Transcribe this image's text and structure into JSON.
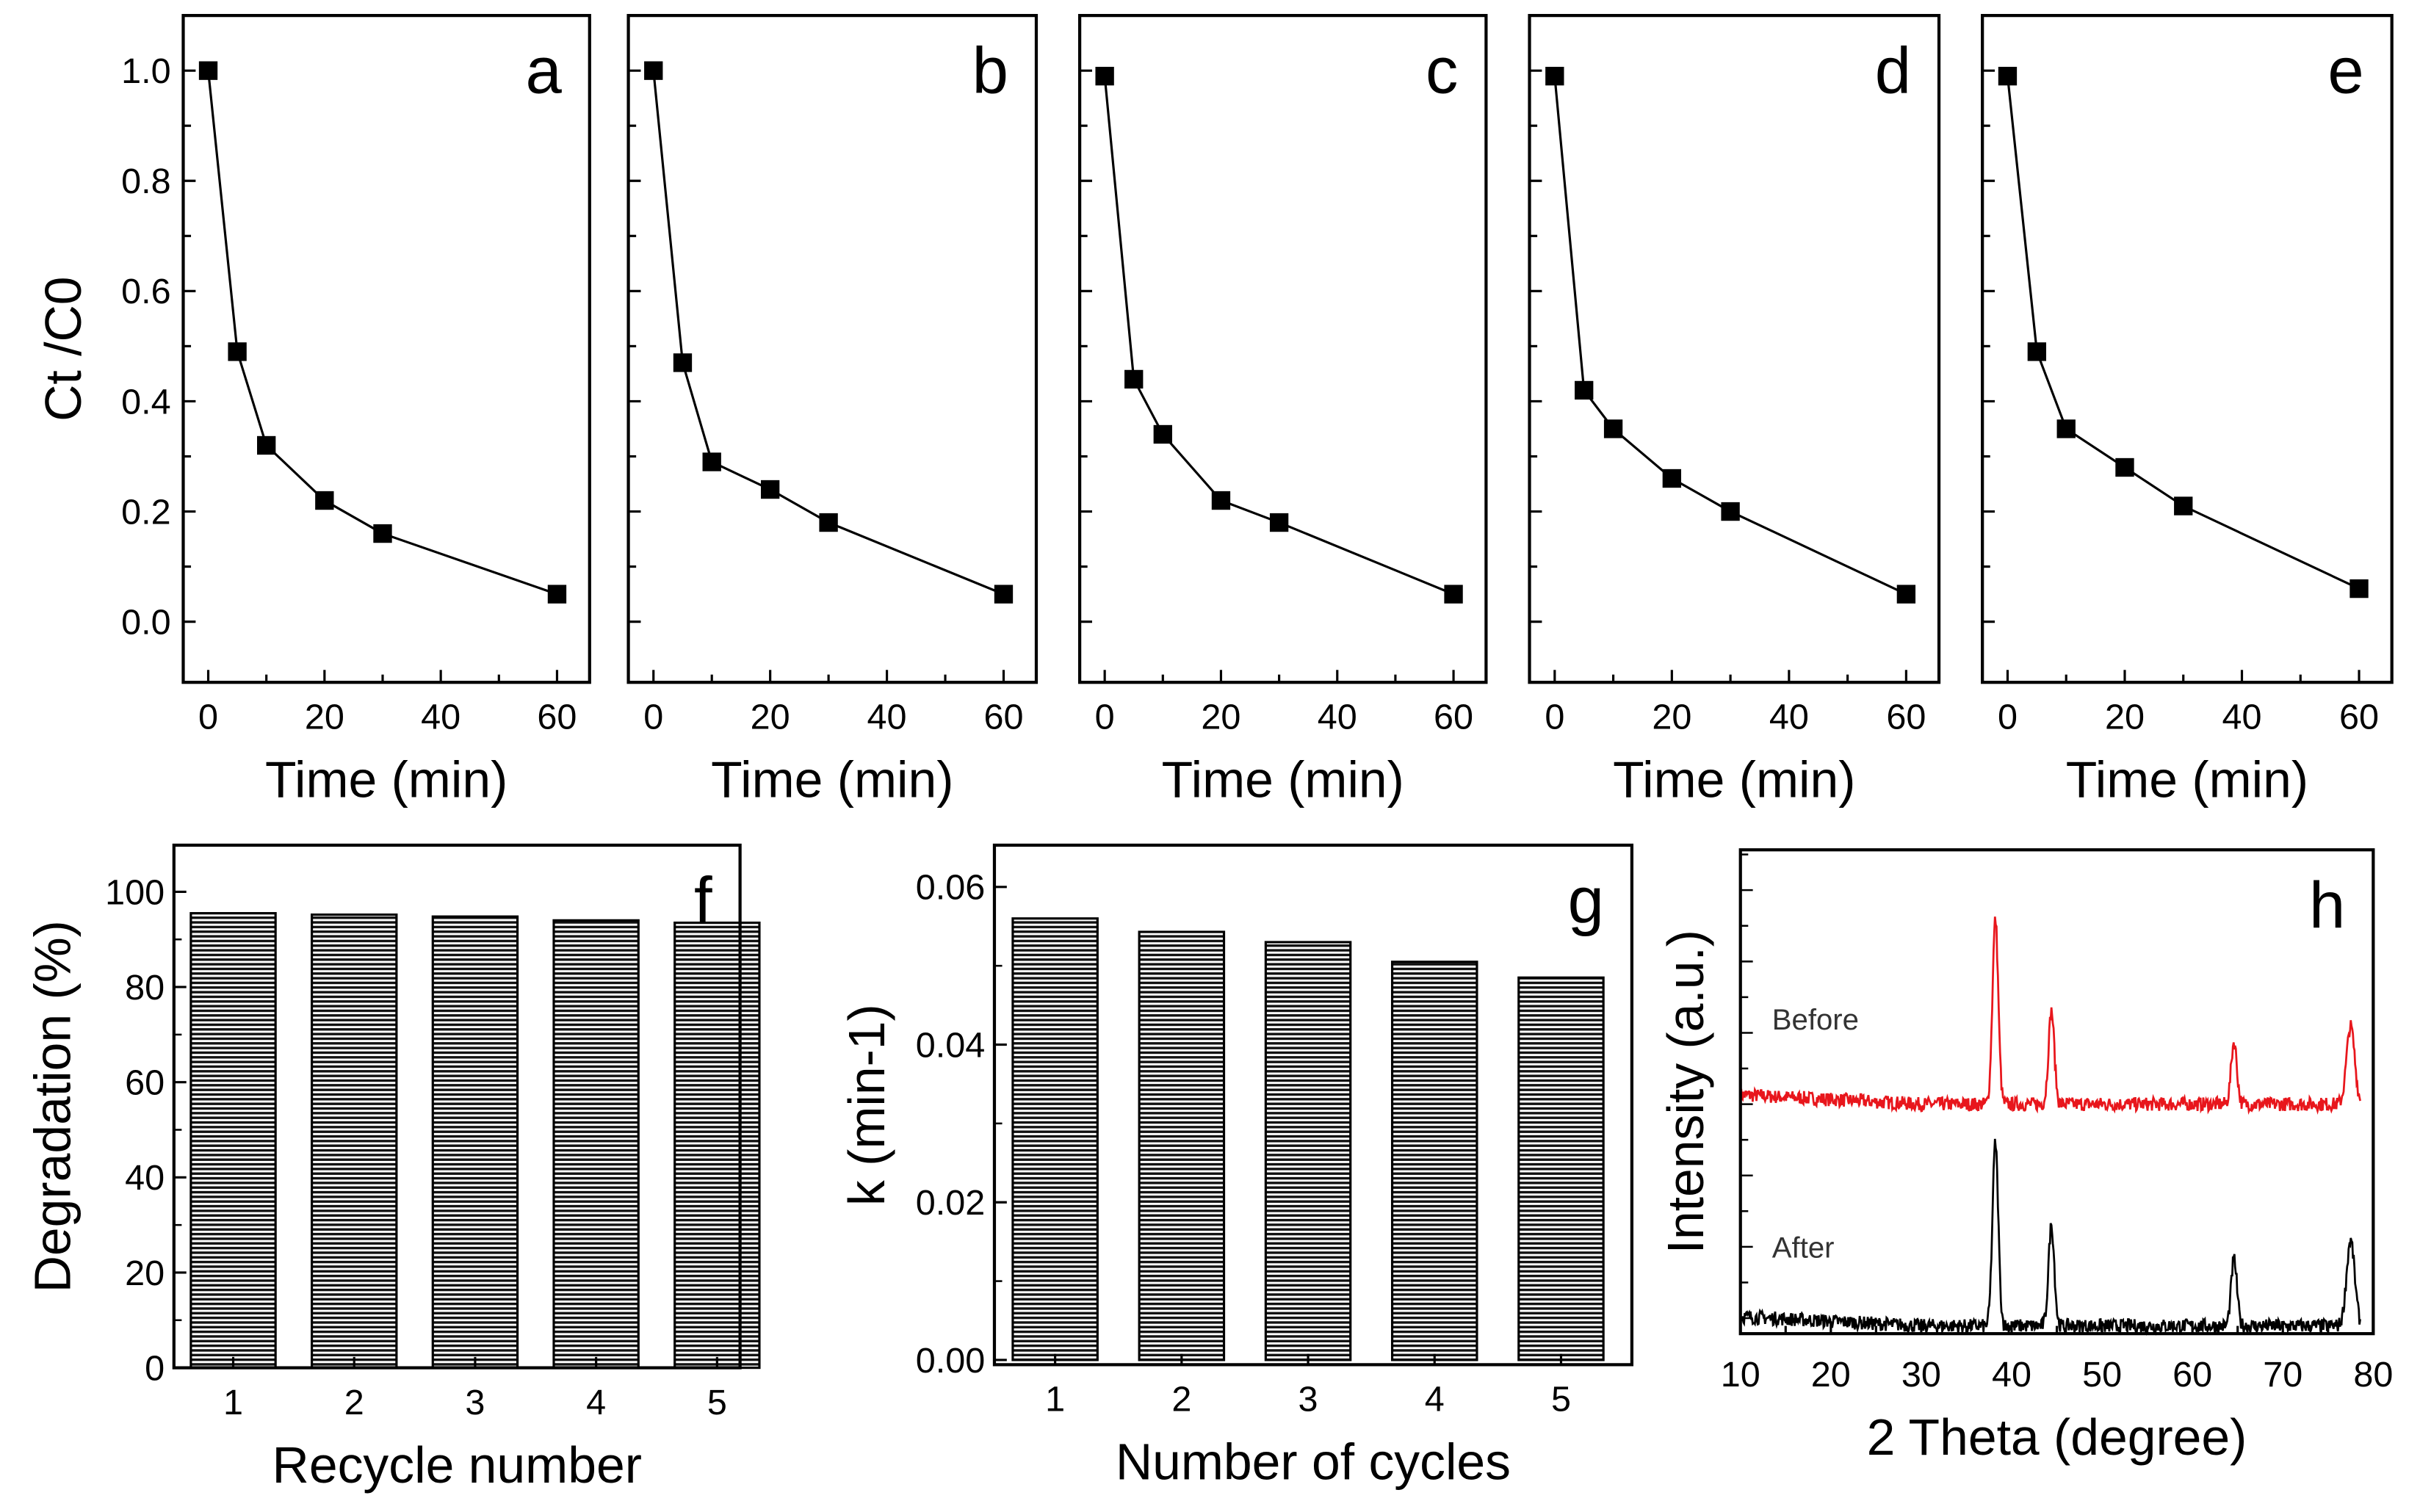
{
  "chart_data": [
    {
      "id": "a",
      "type": "line",
      "panel_label": "a",
      "title": "",
      "xlabel": "Time (min)",
      "ylabel": "Ct /C0",
      "ylabel_parts": [
        "C",
        "t",
        " /C",
        "0"
      ],
      "x": [
        0,
        5,
        10,
        20,
        30,
        60
      ],
      "values": [
        1.0,
        0.49,
        0.32,
        0.22,
        0.16,
        0.05
      ],
      "xlim": [
        -4.3,
        65.6
      ],
      "ylim": [
        -0.11,
        1.1
      ],
      "xticks": [
        "0",
        "20",
        "40",
        "60"
      ],
      "yticks": [
        "0.0",
        "0.2",
        "0.4",
        "0.6",
        "0.8",
        "1.0"
      ],
      "marker": "square"
    },
    {
      "id": "b",
      "type": "line",
      "panel_label": "b",
      "xlabel": "Time (min)",
      "x": [
        0,
        5,
        10,
        20,
        30,
        60
      ],
      "values": [
        1.0,
        0.47,
        0.29,
        0.24,
        0.18,
        0.05
      ],
      "xlim": [
        -4.3,
        65.6
      ],
      "ylim": [
        -0.11,
        1.1
      ],
      "xticks": [
        "0",
        "20",
        "40",
        "60"
      ],
      "marker": "square"
    },
    {
      "id": "c",
      "type": "line",
      "panel_label": "c",
      "xlabel": "Time (min)",
      "x": [
        0,
        5,
        10,
        20,
        30,
        60
      ],
      "values": [
        0.99,
        0.44,
        0.34,
        0.22,
        0.18,
        0.05
      ],
      "xlim": [
        -4.3,
        65.6
      ],
      "ylim": [
        -0.11,
        1.1
      ],
      "xticks": [
        "0",
        "20",
        "40",
        "60"
      ],
      "marker": "square"
    },
    {
      "id": "d",
      "type": "line",
      "panel_label": "d",
      "xlabel": "Time (min)",
      "x": [
        0,
        5,
        10,
        20,
        30,
        60
      ],
      "values": [
        0.99,
        0.42,
        0.35,
        0.26,
        0.2,
        0.05
      ],
      "xlim": [
        -4.3,
        65.6
      ],
      "ylim": [
        -0.11,
        1.1
      ],
      "xticks": [
        "0",
        "20",
        "40",
        "60"
      ],
      "marker": "square"
    },
    {
      "id": "e",
      "type": "line",
      "panel_label": "e",
      "xlabel": "Time (min)",
      "x": [
        0,
        5,
        10,
        20,
        30,
        60
      ],
      "values": [
        0.99,
        0.49,
        0.35,
        0.28,
        0.21,
        0.06
      ],
      "xlim": [
        -4.3,
        65.6
      ],
      "ylim": [
        -0.11,
        1.1
      ],
      "xticks": [
        "0",
        "20",
        "40",
        "60"
      ],
      "marker": "square"
    },
    {
      "id": "f",
      "type": "bar",
      "panel_label": "f",
      "xlabel": "Recycle number",
      "ylabel": "Degradation (%)",
      "categories": [
        "1",
        "2",
        "3",
        "4",
        "5"
      ],
      "values": [
        95.5,
        95.2,
        94.8,
        94.0,
        93.5
      ],
      "xlim": [
        0.51,
        5.19
      ],
      "ylim": [
        0,
        109.8
      ],
      "yticks": [
        "0",
        "20",
        "40",
        "60",
        "80",
        "100"
      ]
    },
    {
      "id": "g",
      "type": "bar",
      "panel_label": "g",
      "xlabel": "Number of cycles",
      "ylabel": "k (min-1)",
      "ylabel_parts": [
        "k (min",
        "-1",
        ")"
      ],
      "categories": [
        "1",
        "2",
        "3",
        "4",
        "5"
      ],
      "values": [
        0.056,
        0.0543,
        0.053,
        0.0505,
        0.0485
      ],
      "xlim": [
        0.52,
        5.56
      ],
      "ylim": [
        -0.0006,
        0.0653
      ],
      "yticks": [
        "0.00",
        "0.02",
        "0.04",
        "0.06"
      ]
    },
    {
      "id": "h",
      "type": "line",
      "panel_label": "h",
      "xlabel": "2 Theta (degree)",
      "ylabel": "Intensity (a.u.)",
      "xlim": [
        10,
        80
      ],
      "ylim": [
        0,
        31.2
      ],
      "xticks": [
        "10",
        "20",
        "30",
        "40",
        "50",
        "60",
        "70",
        "80"
      ],
      "series": [
        {
          "name": "Before",
          "color": "#e8161c",
          "baseline": 14.8,
          "peaks": [
            {
              "x": 38.2,
              "y": 26.7
            },
            {
              "x": 44.4,
              "y": 20.8
            },
            {
              "x": 64.6,
              "y": 18.8
            },
            {
              "x": 77.5,
              "y": 19.8
            }
          ]
        },
        {
          "name": "After",
          "color": "#000000",
          "baseline": 0.5,
          "peaks": [
            {
              "x": 38.2,
              "y": 12.3
            },
            {
              "x": 44.4,
              "y": 7.0
            },
            {
              "x": 64.6,
              "y": 4.8
            },
            {
              "x": 77.5,
              "y": 6.0
            }
          ]
        }
      ]
    }
  ]
}
